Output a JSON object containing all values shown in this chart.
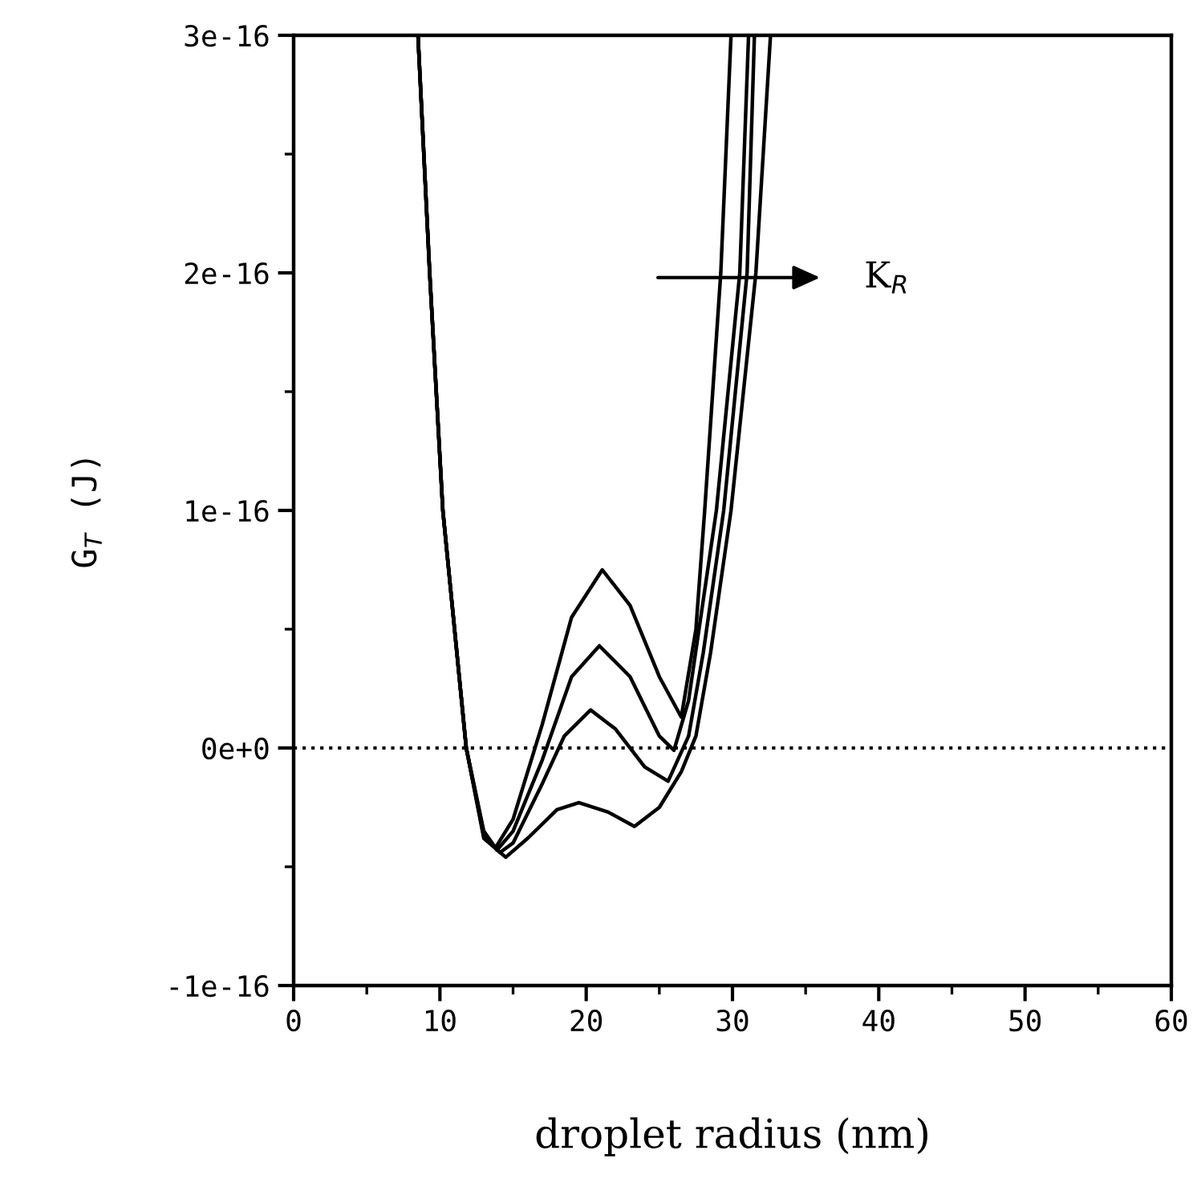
{
  "chart_data": {
    "type": "line",
    "xlabel": "droplet radius (nm)",
    "ylabel": "G$_{T}$ (J)",
    "xlim": [
      0,
      60
    ],
    "xticks": [
      0,
      10,
      20,
      30,
      40,
      50,
      60
    ],
    "ylim": [
      -1e-16,
      3e-16
    ],
    "yticks": [
      {
        "value": -1e-16,
        "label": "-1e-16"
      },
      {
        "value": 0,
        "label": "0e+0"
      },
      {
        "value": 1e-16,
        "label": "1e-16"
      },
      {
        "value": 2e-16,
        "label": "2e-16"
      },
      {
        "value": 3e-16,
        "label": "3e-16"
      }
    ],
    "grid": false,
    "legend": false,
    "marker": "none",
    "line_style": "solid",
    "ref_lines": [
      {
        "axis": "y",
        "value": 0,
        "label": null,
        "color": "#000000",
        "line_style": "dotted"
      }
    ],
    "annotations": [
      "K$_{R}$"
    ],
    "series": [
      {
        "color": "#000000",
        "x": [
          8.5,
          9.3,
          10.2,
          11.8,
          13,
          13.8,
          15,
          17,
          19,
          21.1,
          23,
          25,
          26.5,
          27.5,
          28.1,
          29.2,
          29.9
        ],
        "values": [
          3e-16,
          2e-16,
          1e-16,
          0,
          -3.5e-17,
          -4.2e-17,
          -3e-17,
          1e-17,
          5.5e-17,
          7.5e-17,
          6e-17,
          3e-17,
          1.3e-17,
          5e-17,
          1e-16,
          2e-16,
          3e-16
        ]
      },
      {
        "color": "#000000",
        "x": [
          8.5,
          9.3,
          10.2,
          11.8,
          13,
          13.9,
          15,
          17,
          19,
          20.9,
          23,
          25,
          26,
          27,
          28.9,
          30.5,
          31.1
        ],
        "values": [
          3e-16,
          2e-16,
          1e-16,
          0,
          -3.6e-17,
          -4.3e-17,
          -3.5e-17,
          -5e-18,
          3e-17,
          4.3e-17,
          3e-17,
          5e-18,
          -1e-18,
          2e-17,
          1e-16,
          2e-16,
          3e-16
        ]
      },
      {
        "color": "#000000",
        "x": [
          8.5,
          9.3,
          10.2,
          11.8,
          13,
          14.1,
          15,
          17,
          18.5,
          20.3,
          22,
          24,
          25.6,
          27,
          28,
          29.4,
          31,
          31.5
        ],
        "values": [
          3e-16,
          2e-16,
          1e-16,
          0,
          -3.7e-17,
          -4.4e-17,
          -4e-17,
          -1.5e-17,
          5e-18,
          1.6e-17,
          8e-18,
          -8e-18,
          -1.4e-17,
          5e-18,
          4e-17,
          1e-16,
          2e-16,
          3e-16
        ]
      },
      {
        "color": "#000000",
        "x": [
          8.5,
          9.3,
          10.2,
          11.8,
          13,
          14.5,
          16,
          18,
          19.5,
          21.5,
          23.3,
          25,
          26.5,
          27.5,
          28.5,
          29.9,
          31.6,
          32.6
        ],
        "values": [
          3e-16,
          2e-16,
          1e-16,
          0,
          -3.8e-17,
          -4.6e-17,
          -3.8e-17,
          -2.6e-17,
          -2.3e-17,
          -2.7e-17,
          -3.3e-17,
          -2.5e-17,
          -1e-17,
          5e-18,
          4e-17,
          1e-16,
          2e-16,
          3e-16
        ]
      }
    ]
  }
}
